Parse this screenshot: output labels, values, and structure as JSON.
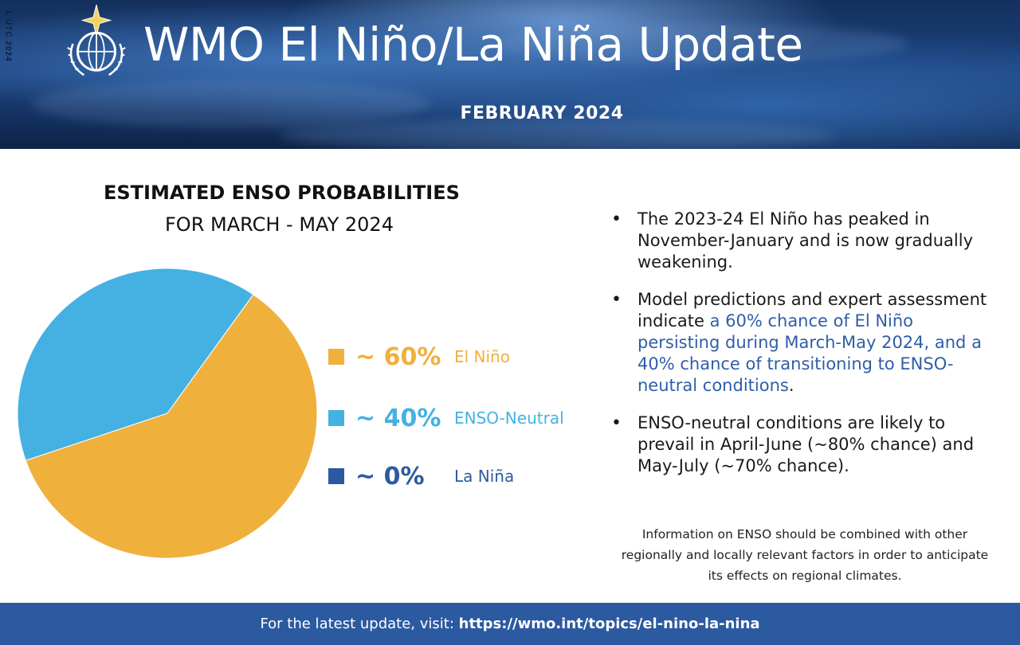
{
  "header": {
    "side_text": "L UTC 2024",
    "title": "WMO El Niño/La Niña Update",
    "subtitle": "FEBRUARY 2024",
    "logo": "wmo-emblem"
  },
  "chart_data": {
    "type": "pie",
    "title": "ESTIMATED ENSO PROBABILITIES",
    "subtitle": "FOR MARCH - MAY 2024",
    "slices": [
      {
        "label": "El Niño",
        "value": 60,
        "display": "~ 60%",
        "color": "#f0b03c"
      },
      {
        "label": "ENSO-Neutral",
        "value": 40,
        "display": "~ 40%",
        "color": "#45b1e2"
      },
      {
        "label": "La Niña",
        "value": 0,
        "display": "~ 0%",
        "color": "#2c5aa0"
      }
    ],
    "legend_position": "right"
  },
  "bullets": [
    {
      "parts": [
        {
          "text": "The 2023-24 El Niño has peaked in November-January and is now gradually weakening.",
          "highlight": false
        }
      ]
    },
    {
      "parts": [
        {
          "text": "Model predictions and expert assessment indicate ",
          "highlight": false
        },
        {
          "text": "a 60% chance of El Niño persisting during March-May 2024, and a 40% chance of transitioning to ENSO-neutral conditions",
          "highlight": true
        },
        {
          "text": ".",
          "highlight": false
        }
      ]
    },
    {
      "parts": [
        {
          "text": "ENSO-neutral conditions are likely to prevail in April-June (~80% chance) and May-July (~70% chance).",
          "highlight": false
        }
      ]
    }
  ],
  "note": "Information on ENSO should be combined with other regionally and locally relevant factors in order to anticipate its effects on regional climates.",
  "footer": {
    "prefix": "For the latest update, visit: ",
    "link": "https://wmo.int/topics/el-nino-la-nina"
  },
  "colors": {
    "highlight": "#2e5ea8",
    "footer_bg": "#2c5aa0"
  }
}
